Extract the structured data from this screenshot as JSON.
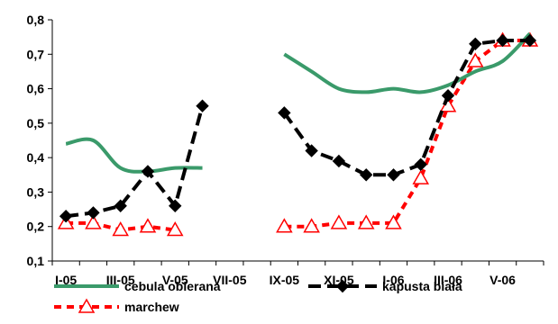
{
  "chart_data": {
    "type": "line",
    "title": "",
    "xlabel": "",
    "ylabel": "",
    "ylim": [
      0.1,
      0.8
    ],
    "yticks": [
      "0,1",
      "0,2",
      "0,3",
      "0,4",
      "0,5",
      "0,6",
      "0,7",
      "0,8"
    ],
    "x_tick_labels": [
      "I-05",
      "III-05",
      "V-05",
      "VII-05",
      "IX-05",
      "XI-05",
      "I-06",
      "III-06",
      "V-06"
    ],
    "grid": false,
    "legend_position": "bottom",
    "series": [
      {
        "name": "cebula obierana",
        "color": "#3a9a6a",
        "style": "solid",
        "marker": "none",
        "points": [
          [
            0,
            0.44
          ],
          [
            1,
            0.45
          ],
          [
            2,
            0.37
          ],
          [
            3,
            0.36
          ],
          [
            4,
            0.37
          ],
          [
            5,
            0.37
          ],
          [
            6,
            null
          ],
          [
            7,
            null
          ],
          [
            8,
            0.7
          ],
          [
            9,
            0.65
          ],
          [
            10,
            0.6
          ],
          [
            11,
            0.59
          ],
          [
            12,
            0.6
          ],
          [
            13,
            0.59
          ],
          [
            14,
            0.61
          ],
          [
            15,
            0.65
          ],
          [
            16,
            0.68
          ],
          [
            17,
            0.76
          ]
        ]
      },
      {
        "name": "kapusta biała",
        "color": "#000000",
        "style": "dashed",
        "marker": "diamond",
        "points": [
          [
            0,
            0.23
          ],
          [
            1,
            0.24
          ],
          [
            2,
            0.26
          ],
          [
            3,
            0.36
          ],
          [
            4,
            0.26
          ],
          [
            5,
            0.55
          ],
          [
            6,
            null
          ],
          [
            7,
            null
          ],
          [
            8,
            0.53
          ],
          [
            9,
            0.42
          ],
          [
            10,
            0.39
          ],
          [
            11,
            0.35
          ],
          [
            12,
            0.35
          ],
          [
            13,
            0.38
          ],
          [
            14,
            0.58
          ],
          [
            15,
            0.73
          ],
          [
            16,
            0.74
          ],
          [
            17,
            0.74
          ]
        ]
      },
      {
        "name": "marchew",
        "color": "#ff0000",
        "style": "dotted",
        "marker": "triangle-open",
        "points": [
          [
            0,
            0.21
          ],
          [
            1,
            0.21
          ],
          [
            2,
            0.19
          ],
          [
            3,
            0.2
          ],
          [
            4,
            0.19
          ],
          [
            5,
            null
          ],
          [
            6,
            null
          ],
          [
            7,
            null
          ],
          [
            8,
            0.2
          ],
          [
            9,
            0.2
          ],
          [
            10,
            0.21
          ],
          [
            11,
            0.21
          ],
          [
            12,
            0.21
          ],
          [
            13,
            0.34
          ],
          [
            14,
            0.55
          ],
          [
            15,
            0.68
          ],
          [
            16,
            0.74
          ],
          [
            17,
            0.74
          ]
        ]
      }
    ]
  }
}
